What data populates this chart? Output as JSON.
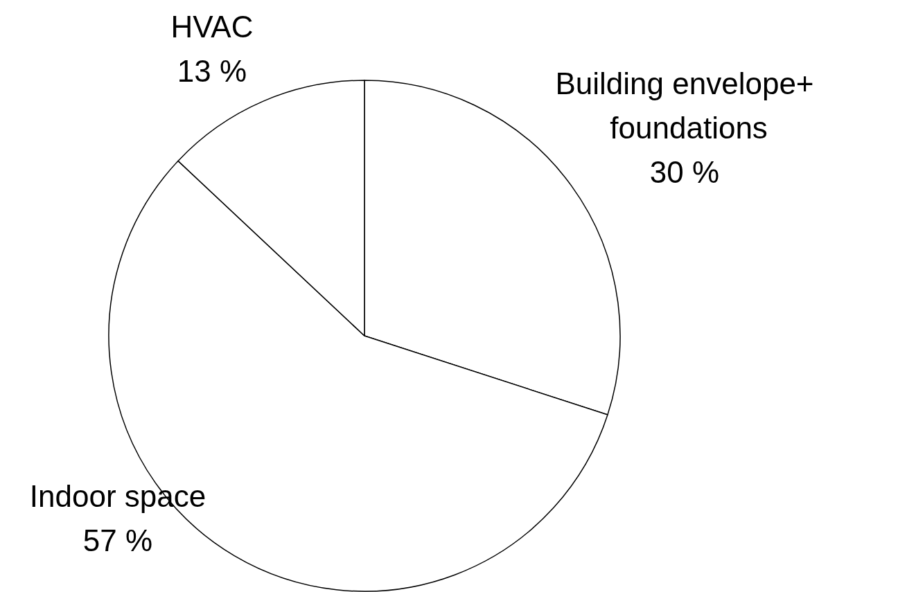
{
  "chart_data": {
    "type": "pie",
    "categories": [
      "Building envelope+\n foundations",
      "Indoor space",
      "HVAC"
    ],
    "values": [
      30,
      57,
      13
    ],
    "colors": [
      "#ffffff",
      "#ffffff",
      "#ffffff"
    ],
    "value_labels": [
      "30 %",
      "57 %",
      "13 %"
    ]
  }
}
